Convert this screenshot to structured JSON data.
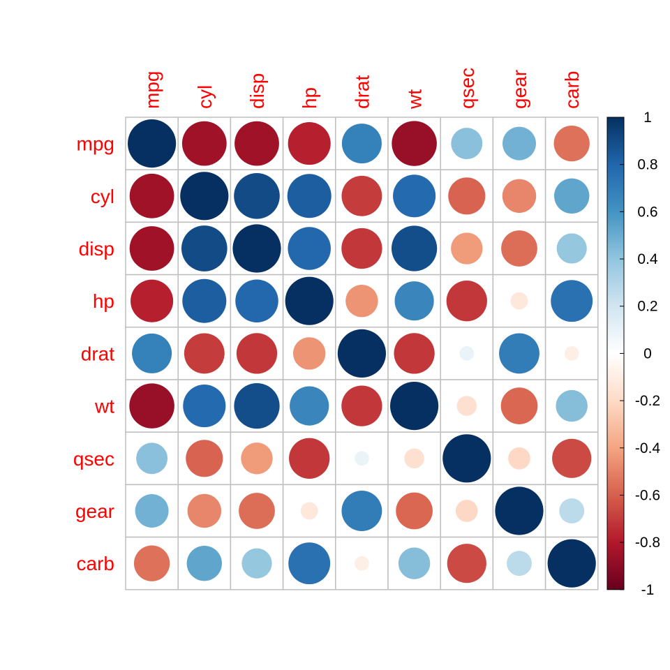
{
  "chart_data": {
    "type": "heatmap",
    "variables": [
      "mpg",
      "cyl",
      "disp",
      "hp",
      "drat",
      "wt",
      "qsec",
      "gear",
      "carb"
    ],
    "matrix": [
      [
        1.0,
        -0.85,
        -0.85,
        -0.78,
        0.68,
        -0.87,
        0.42,
        0.48,
        -0.55
      ],
      [
        -0.85,
        1.0,
        0.9,
        0.83,
        -0.7,
        0.78,
        -0.59,
        -0.49,
        0.53
      ],
      [
        -0.85,
        0.9,
        1.0,
        0.79,
        -0.71,
        0.89,
        -0.43,
        -0.56,
        0.39
      ],
      [
        -0.78,
        0.83,
        0.79,
        1.0,
        -0.45,
        0.66,
        -0.71,
        -0.13,
        0.75
      ],
      [
        0.68,
        -0.7,
        -0.71,
        -0.45,
        1.0,
        -0.71,
        0.09,
        0.7,
        -0.09
      ],
      [
        -0.87,
        0.78,
        0.89,
        0.66,
        -0.71,
        1.0,
        -0.17,
        -0.58,
        0.43
      ],
      [
        0.42,
        -0.59,
        -0.43,
        -0.71,
        0.09,
        -0.17,
        1.0,
        -0.21,
        -0.66
      ],
      [
        0.48,
        -0.49,
        -0.56,
        -0.13,
        0.7,
        -0.58,
        -0.21,
        1.0,
        0.27
      ],
      [
        -0.55,
        0.53,
        0.39,
        0.75,
        -0.09,
        0.43,
        -0.66,
        0.27,
        1.0
      ]
    ],
    "colorbar": {
      "range": [
        -1,
        1
      ],
      "ticks": [
        "1",
        "0.8",
        "0.6",
        "0.4",
        "0.2",
        "0",
        "-0.2",
        "-0.4",
        "-0.6",
        "-0.8",
        "-1"
      ]
    },
    "colors": {
      "label": "#ff0000",
      "grid": "#bebebe",
      "scale": [
        "#67001f",
        "#b2182b",
        "#d6604d",
        "#f4a582",
        "#fddbc7",
        "#ffffff",
        "#d1e5f0",
        "#92c5de",
        "#4393c3",
        "#2166ac",
        "#053061"
      ]
    },
    "marker": "circle",
    "legend": "right"
  }
}
